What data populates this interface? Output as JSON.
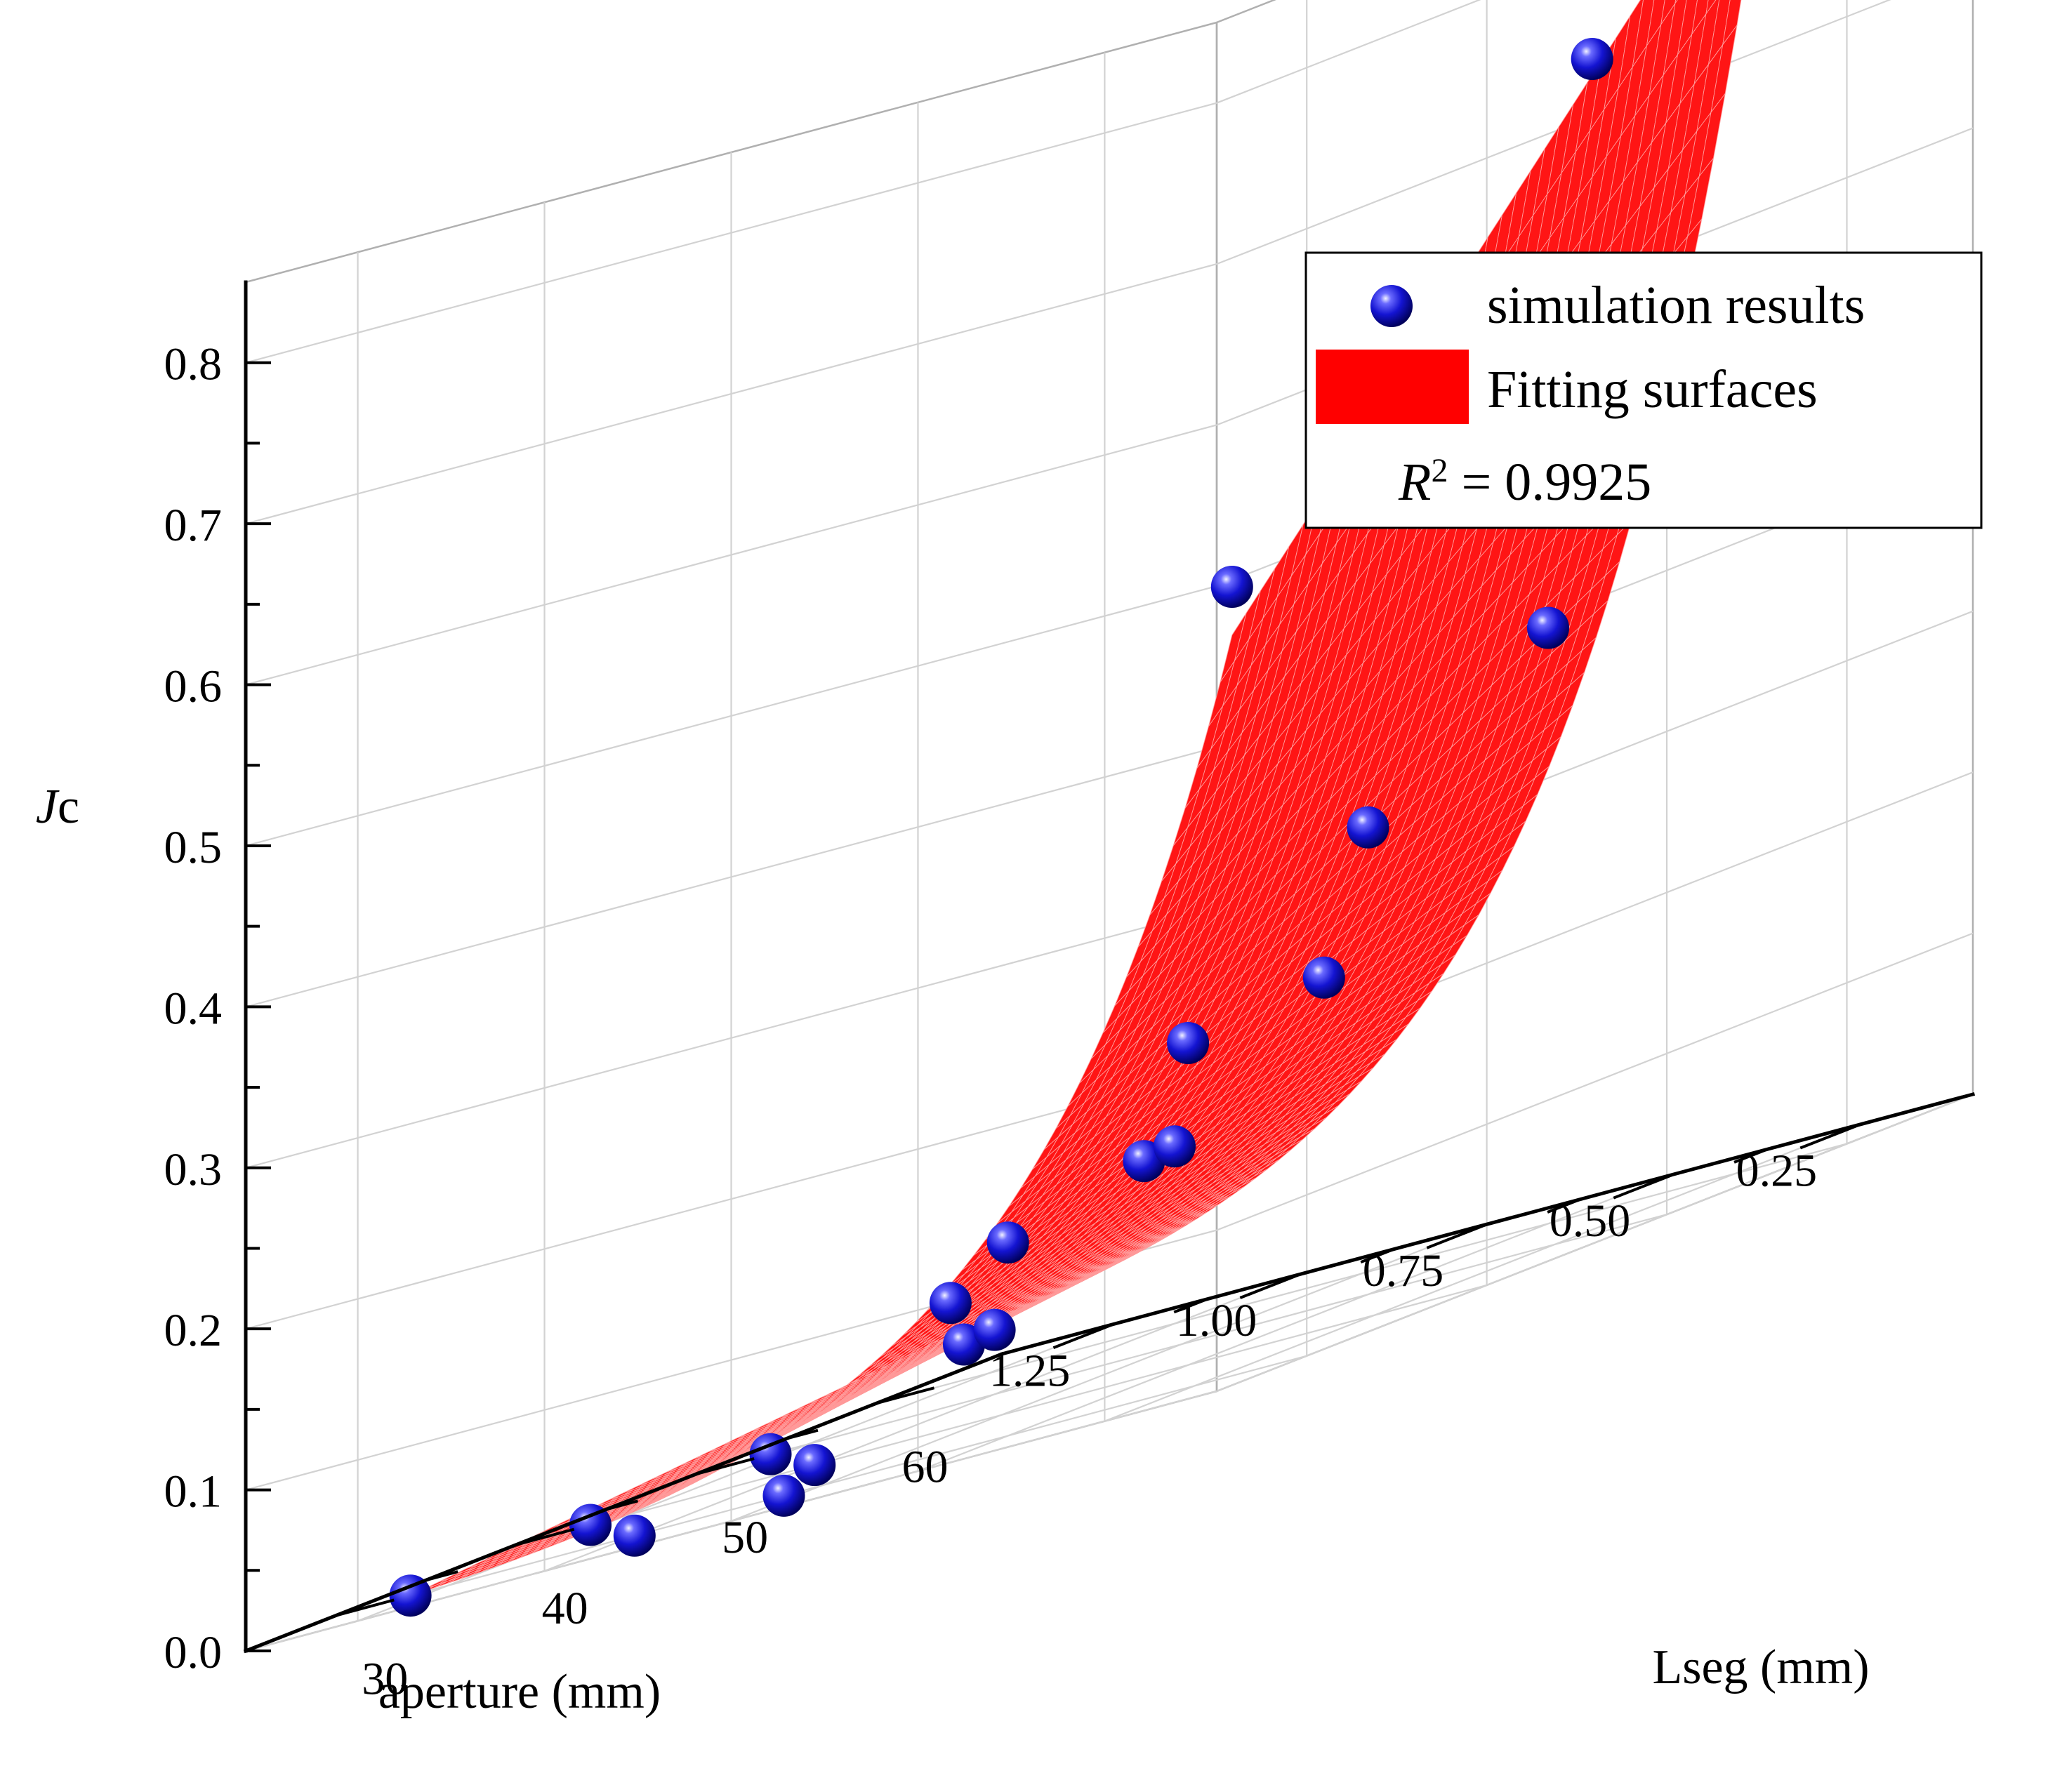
{
  "chart_data": {
    "type": "scatter3d-surface",
    "title": "",
    "x_axis": {
      "label": "aperture (mm)",
      "range": [
        0.1,
        1.4
      ],
      "ticks": [
        "0.25",
        "0.50",
        "0.75",
        "1.00",
        "1.25"
      ]
    },
    "y_axis": {
      "label": "Lseg (mm)",
      "range": [
        25,
        67
      ],
      "ticks": [
        "30",
        "40",
        "50",
        "60"
      ]
    },
    "z_axis": {
      "label_italic": "J",
      "label_rest": "c",
      "range": [
        0,
        0.85
      ],
      "ticks": [
        "0.0",
        "0.1",
        "0.2",
        "0.3",
        "0.4",
        "0.5",
        "0.6",
        "0.7",
        "0.8"
      ]
    },
    "grid": true,
    "legend": {
      "placement": "top-right",
      "entries": [
        {
          "label": "simulation results",
          "symbol": "sphere"
        },
        {
          "label": "Fitting surfaces",
          "symbol": "patch"
        }
      ],
      "r2_italic": "R",
      "r2_sup": "2",
      "r2_rest": " = 0.9925"
    },
    "series": [
      {
        "name": "simulation results",
        "type": "scatter",
        "color": "#1a1adc",
        "points": [
          {
            "x": 0.2,
            "y": 30,
            "z": 0.49
          },
          {
            "x": 0.2,
            "y": 40,
            "z": 0.6
          },
          {
            "x": 0.2,
            "y": 50,
            "z": 0.73
          },
          {
            "x": 0.2,
            "y": 60,
            "z": 0.89
          },
          {
            "x": 0.5,
            "y": 30,
            "z": 0.12
          },
          {
            "x": 0.5,
            "y": 40,
            "z": 0.2
          },
          {
            "x": 0.5,
            "y": 50,
            "z": 0.29
          },
          {
            "x": 0.5,
            "y": 60,
            "z": 0.37
          },
          {
            "x": 0.8,
            "y": 30,
            "z": 0.0
          },
          {
            "x": 0.8,
            "y": 40,
            "z": 0.05
          },
          {
            "x": 0.8,
            "y": 50,
            "z": 0.12
          },
          {
            "x": 0.8,
            "y": 60,
            "z": 0.19
          },
          {
            "x": 1.0,
            "y": 30,
            "z": 0.0
          },
          {
            "x": 1.0,
            "y": 40,
            "z": 0.0
          },
          {
            "x": 1.0,
            "y": 50,
            "z": 0.04
          },
          {
            "x": 1.0,
            "y": 60,
            "z": 0.11
          },
          {
            "x": 1.3,
            "y": 30,
            "z": 0.0
          },
          {
            "x": 1.3,
            "y": 40,
            "z": 0.0
          },
          {
            "x": 1.3,
            "y": 50,
            "z": 0.0
          },
          {
            "x": 1.3,
            "y": 60,
            "z": 0.05
          }
        ]
      },
      {
        "name": "Fitting surfaces",
        "type": "surface",
        "color": "#ff1a1a",
        "x_range": [
          0.2,
          1.3
        ],
        "y_range": [
          30,
          60
        ],
        "corner_values": {
          "x0.2_y30": 0.46,
          "x0.2_y60": 0.85,
          "x1.3_y30": 0.0,
          "x1.3_y60": 0.03
        }
      }
    ]
  }
}
